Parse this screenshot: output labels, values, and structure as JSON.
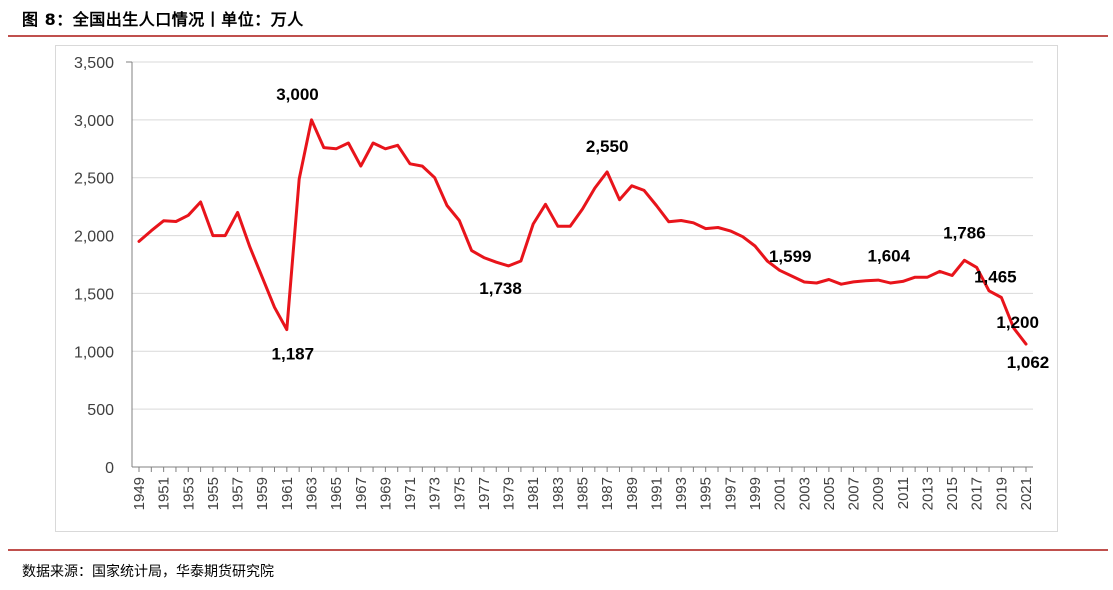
{
  "header": {
    "title": "图 8：全国出生人口情况丨单位：万人"
  },
  "footer": {
    "source": "数据来源：国家统计局，华泰期货研究院"
  },
  "colors": {
    "accent_rule": "#c0504d",
    "series_line": "#e8141b",
    "gridline": "#d9d9d9",
    "axis_text": "#404040"
  },
  "chart_data": {
    "type": "line",
    "title": "",
    "xlabel": "",
    "ylabel": "",
    "ylim": [
      0,
      3500
    ],
    "yticks": [
      0,
      500,
      1000,
      1500,
      2000,
      2500,
      3000,
      3500
    ],
    "ytick_labels": [
      "0",
      "500",
      "1,000",
      "1,500",
      "2,000",
      "2,500",
      "3,000",
      "3,500"
    ],
    "grid": "horizontal",
    "legend": "none",
    "x": [
      1949,
      1950,
      1951,
      1952,
      1953,
      1954,
      1955,
      1956,
      1957,
      1958,
      1959,
      1960,
      1961,
      1962,
      1963,
      1964,
      1965,
      1966,
      1967,
      1968,
      1969,
      1970,
      1971,
      1972,
      1973,
      1974,
      1975,
      1976,
      1977,
      1978,
      1979,
      1980,
      1981,
      1982,
      1983,
      1984,
      1985,
      1986,
      1987,
      1988,
      1989,
      1990,
      1991,
      1992,
      1993,
      1994,
      1995,
      1996,
      1997,
      1998,
      1999,
      2000,
      2001,
      2002,
      2003,
      2004,
      2005,
      2006,
      2007,
      2008,
      2009,
      2010,
      2011,
      2012,
      2013,
      2014,
      2015,
      2016,
      2017,
      2018,
      2019,
      2020,
      2021
    ],
    "xtick_labels": [
      "1949",
      "1951",
      "1953",
      "1955",
      "1957",
      "1959",
      "1961",
      "1963",
      "1965",
      "1967",
      "1969",
      "1971",
      "1973",
      "1975",
      "1977",
      "1979",
      "1981",
      "1983",
      "1985",
      "1987",
      "1989",
      "1991",
      "1993",
      "1995",
      "1997",
      "1999",
      "2001",
      "2003",
      "2005",
      "2007",
      "2009",
      "2011",
      "2013",
      "2015",
      "2017",
      "2019",
      "2021"
    ],
    "series": [
      {
        "values": [
          1950,
          2042,
          2128,
          2122,
          2175,
          2290,
          2000,
          2000,
          2200,
          1900,
          1640,
          1380,
          1187,
          2490,
          3000,
          2760,
          2750,
          2800,
          2600,
          2800,
          2750,
          2780,
          2620,
          2600,
          2500,
          2260,
          2130,
          1870,
          1810,
          1770,
          1738,
          1780,
          2100,
          2270,
          2080,
          2080,
          2230,
          2410,
          2550,
          2310,
          2430,
          2390,
          2260,
          2120,
          2130,
          2110,
          2060,
          2070,
          2040,
          1990,
          1910,
          1780,
          1700,
          1650,
          1599,
          1590,
          1620,
          1580,
          1600,
          1610,
          1615,
          1590,
          1604,
          1640,
          1640,
          1690,
          1655,
          1786,
          1725,
          1523,
          1465,
          1200,
          1062
        ]
      }
    ],
    "annotations": [
      {
        "x": 1961,
        "text": "1,187"
      },
      {
        "x": 1963,
        "text": "3,000"
      },
      {
        "x": 1979,
        "text": "1,738"
      },
      {
        "x": 1987,
        "text": "2,550"
      },
      {
        "x": 2003,
        "text": "1,599"
      },
      {
        "x": 2011,
        "text": "1,604"
      },
      {
        "x": 2016,
        "text": "1,786"
      },
      {
        "x": 2019,
        "text": "1,465"
      },
      {
        "x": 2020,
        "text": "1,200"
      },
      {
        "x": 2021,
        "text": "1,062"
      }
    ]
  }
}
